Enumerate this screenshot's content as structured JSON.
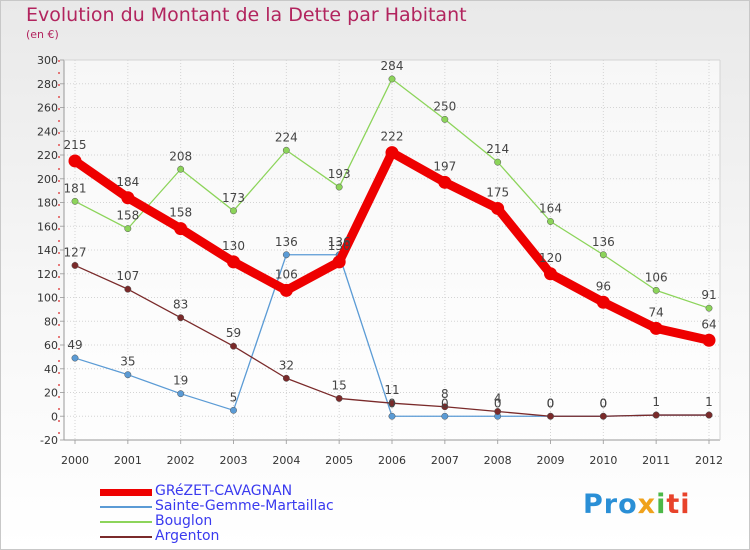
{
  "header": {
    "title": "Evolution du Montant de la Dette par Habitant",
    "subtitle": "(en €)"
  },
  "logo": {
    "parts": [
      "Pro",
      "x",
      "i",
      "ti"
    ],
    "colors": [
      "#2a8fd6",
      "#f0a21c",
      "#4cb848",
      "#e8432b"
    ]
  },
  "chart_data": {
    "type": "line",
    "title": "Evolution du Montant de la Dette par Habitant",
    "subtitle": "(en €)",
    "xlabel": "",
    "ylabel": "",
    "x": [
      "2000",
      "2001",
      "2002",
      "2003",
      "2004",
      "2005",
      "2006",
      "2007",
      "2008",
      "2009",
      "2010",
      "2011",
      "2012"
    ],
    "ylim": [
      -20,
      300
    ],
    "yticks": [
      -20,
      0,
      20,
      40,
      60,
      80,
      100,
      120,
      140,
      160,
      180,
      200,
      220,
      240,
      260,
      280,
      300
    ],
    "grid": true,
    "legend_position": "bottom-left",
    "series": [
      {
        "name": "GRéZET-CAVAGNAN",
        "color": "#ee0000",
        "values": [
          215,
          184,
          158,
          130,
          106,
          130,
          222,
          197,
          175,
          120,
          96,
          74,
          64
        ],
        "labels": [
          "215",
          "184",
          "158",
          "130",
          "106",
          "130",
          "222",
          "197",
          "175",
          "120",
          "96",
          "74",
          "64"
        ]
      },
      {
        "name": "Sainte-Gemme-Martaillac",
        "color": "#5b9bd5",
        "values": [
          49,
          35,
          19,
          5,
          136,
          136,
          0,
          0,
          0,
          0,
          0,
          1,
          1
        ],
        "labels": [
          "49",
          "35",
          "19",
          "5",
          "136",
          "136",
          "0",
          "0",
          "0",
          "0",
          "0",
          "",
          ""
        ]
      },
      {
        "name": "Bouglon",
        "color": "#8cd45a",
        "values": [
          181,
          158,
          208,
          173,
          224,
          193,
          284,
          250,
          214,
          164,
          136,
          106,
          91
        ],
        "labels": [
          "181",
          "158",
          "208",
          "173",
          "224",
          "193",
          "284",
          "250",
          "214",
          "164",
          "136",
          "106",
          "91"
        ]
      },
      {
        "name": "Argenton",
        "color": "#7a2a2a",
        "values": [
          127,
          107,
          83,
          59,
          32,
          15,
          11,
          8,
          4,
          0,
          0,
          1,
          1
        ],
        "labels": [
          "127",
          "107",
          "83",
          "59",
          "32",
          "15",
          "11",
          "8",
          "4",
          "0",
          "0",
          "1",
          "1"
        ]
      }
    ]
  }
}
